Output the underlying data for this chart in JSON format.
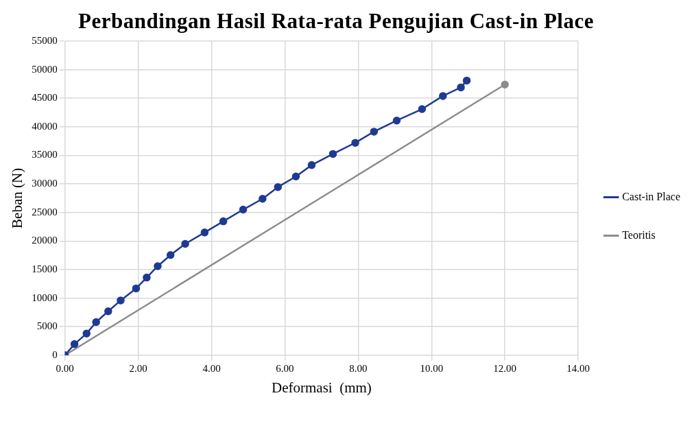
{
  "chart_data": {
    "type": "line",
    "title": "Perbandingan Hasil Rata-rata Pengujian Cast-in Place",
    "xlabel": "Deformasi  (mm)",
    "ylabel": "Beban (N)",
    "xlim": [
      0,
      14
    ],
    "xticks": [
      {
        "value": 0,
        "label": "0.00"
      },
      {
        "value": 2,
        "label": "2.00"
      },
      {
        "value": 4,
        "label": "4.00"
      },
      {
        "value": 6,
        "label": "6.00"
      },
      {
        "value": 8,
        "label": "8.00"
      },
      {
        "value": 10,
        "label": "10.00"
      },
      {
        "value": 12,
        "label": "12.00"
      },
      {
        "value": 14,
        "label": "14.00"
      }
    ],
    "ylim": [
      0,
      55000
    ],
    "yticks": [
      0,
      5000,
      10000,
      15000,
      20000,
      25000,
      30000,
      35000,
      40000,
      45000,
      50000,
      55000
    ],
    "grid": true,
    "legend": "right",
    "marker": "circle",
    "series": [
      {
        "name": "Cast-in Place",
        "color": "#1f3a93",
        "x": [
          0,
          0.26,
          0.59,
          0.85,
          1.18,
          1.52,
          1.94,
          2.23,
          2.53,
          2.88,
          3.28,
          3.81,
          4.32,
          4.86,
          5.39,
          5.81,
          6.3,
          6.73,
          7.31,
          7.92,
          8.43,
          9.05,
          9.74,
          10.31,
          10.8,
          10.96
        ],
        "values": [
          0,
          1950,
          3800,
          5800,
          7700,
          9600,
          11700,
          13600,
          15600,
          17550,
          19500,
          21500,
          23450,
          25500,
          27400,
          29450,
          31300,
          33300,
          35250,
          37200,
          39150,
          41100,
          43100,
          45400,
          46900,
          48100
        ]
      },
      {
        "name": "Teoritis",
        "color": "#8c8c8c",
        "x": [
          0,
          12
        ],
        "values": [
          0,
          47400
        ]
      }
    ]
  }
}
